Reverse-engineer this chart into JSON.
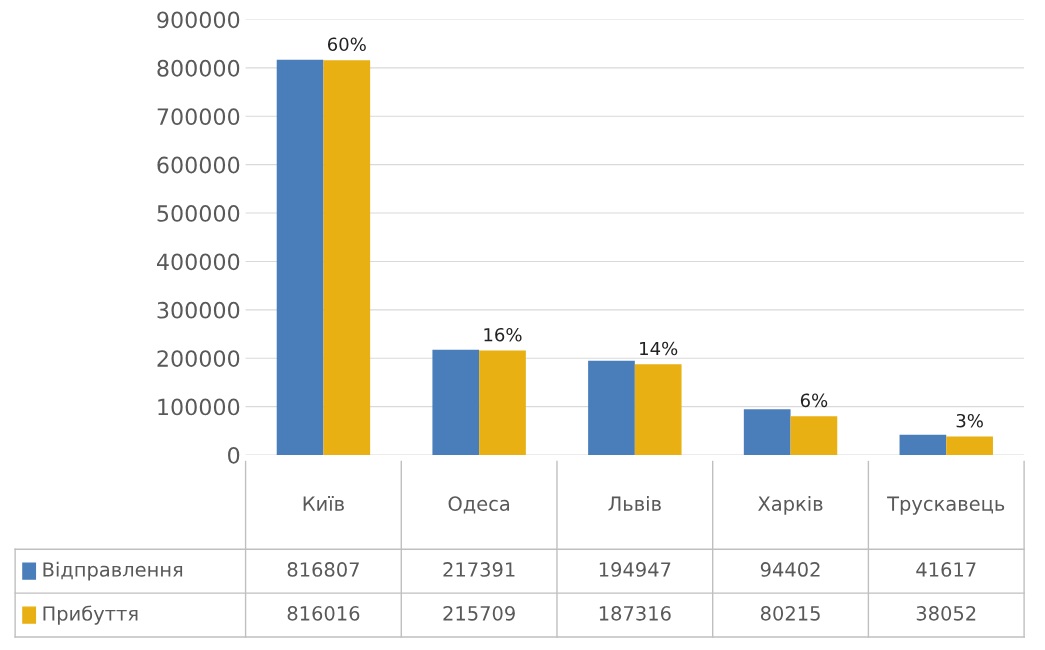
{
  "chart_data": {
    "type": "bar",
    "categories": [
      "Київ",
      "Одеса",
      "Львів",
      "Харків",
      "Трускавець"
    ],
    "series": [
      {
        "name": "Відправлення",
        "color": "#4a7ebb",
        "values": [
          816807,
          217391,
          194947,
          94402,
          41617
        ]
      },
      {
        "name": "Прибуття",
        "color": "#e8b012",
        "values": [
          816016,
          215709,
          187316,
          80215,
          38052
        ]
      }
    ],
    "annotations": [
      {
        "text": "60%",
        "x": "Київ",
        "y": 816016
      },
      {
        "text": "16%",
        "x": "Одеса",
        "y": 215709
      },
      {
        "text": "14%",
        "x": "Львів",
        "y": 187316
      },
      {
        "text": "6%",
        "x": "Харків",
        "y": 80215
      },
      {
        "text": "3%",
        "x": "Трускавець",
        "y": 38052
      }
    ],
    "legend": "bottom left",
    "ylim": [
      0,
      900000
    ],
    "yticks": [
      0,
      100000,
      200000,
      300000,
      400000,
      500000,
      600000,
      700000,
      800000,
      900000
    ],
    "grid": "y",
    "data_labels": true
  }
}
